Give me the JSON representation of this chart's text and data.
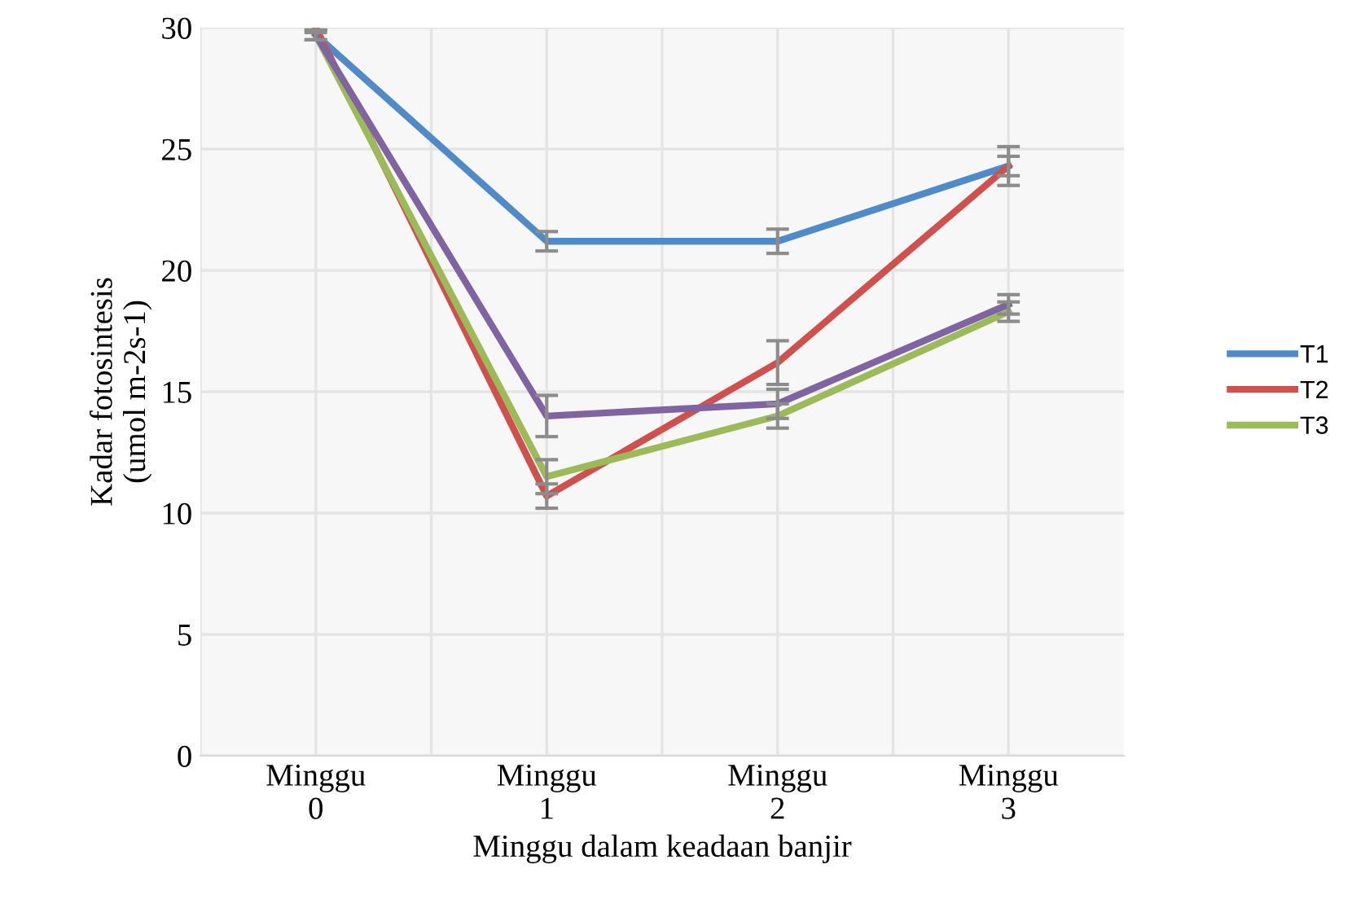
{
  "chart_data": {
    "type": "line",
    "xlabel": "Minggu dalam keadaan banjir",
    "ylabel": "Kadar fotosintesis\n(umol m-2s-1)",
    "categories": [
      "Minggu\n0",
      "Minggu\n1",
      "Minggu\n2",
      "Minggu\n3"
    ],
    "series": [
      {
        "name": "T1",
        "color": "#4f8bc9",
        "values": [
          29.7,
          21.2,
          21.2,
          24.3
        ],
        "errors": [
          0.2,
          0.4,
          0.5,
          0.4
        ]
      },
      {
        "name": "T2",
        "color": "#d0504d",
        "values": [
          30.0,
          10.7,
          16.2,
          24.3
        ],
        "errors": [
          0.2,
          0.5,
          0.9,
          0.8
        ]
      },
      {
        "name": "T3",
        "color": "#9bbb59",
        "values": [
          29.7,
          11.5,
          14.0,
          18.3
        ],
        "errors": [
          0.2,
          0.7,
          0.5,
          0.4
        ]
      },
      {
        "color": "#8064a2",
        "values": [
          29.7,
          14.0,
          14.5,
          18.6
        ],
        "errors": [
          0.2,
          0.85,
          0.6,
          0.4
        ]
      }
    ],
    "ylim": [
      0,
      30
    ],
    "yticks": [
      0,
      5,
      10,
      15,
      20,
      25,
      30
    ],
    "grid": true,
    "legend": "right"
  }
}
